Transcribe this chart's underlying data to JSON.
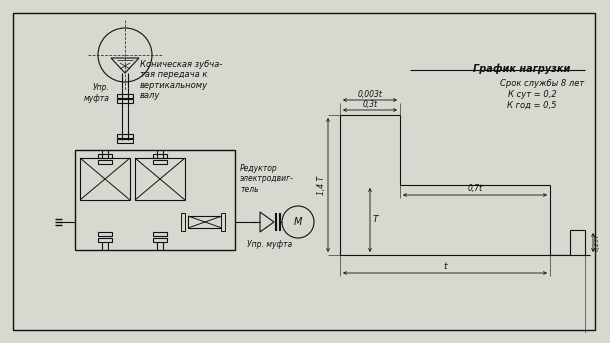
{
  "bg_color": "#d8d8d0",
  "line_color": "#111111",
  "title": "График нагрузки",
  "subtitle1": "Срок службы 8 лет",
  "subtitle2": "К сут = 0,2",
  "subtitle3": "К год = 0,5",
  "label_konus": "Коническая зубча-\nтая передача к\nвертикальному\nвалу",
  "label_upr1": "Упр.\nмуфта",
  "label_reduktor": "Редуктор\nэлектродвиг-\nтель",
  "label_upr2": "Упр. муфта",
  "label_t": "t",
  "label_0003t": "0,003t",
  "label_03t": "0,3t",
  "label_07t": "0,7t",
  "label_14T": "1,4 T",
  "label_T": "T",
  "label_025T": "0,25T"
}
